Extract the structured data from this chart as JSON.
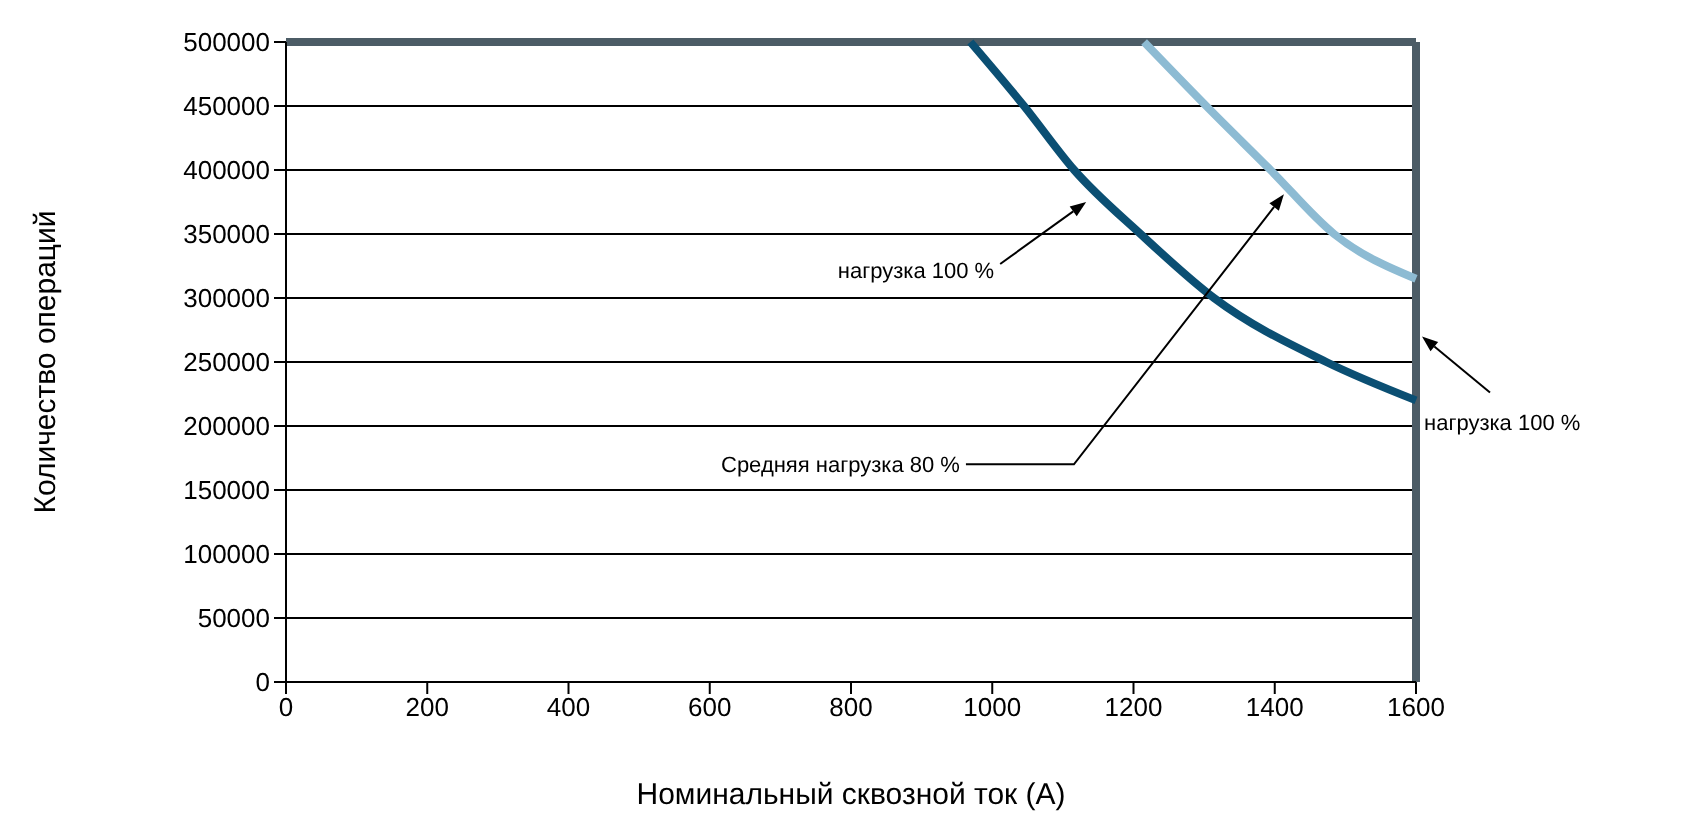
{
  "chart_data": {
    "type": "line",
    "xlabel": "Номинальный сквозной ток (А)",
    "ylabel": "Количество операций",
    "xlim": [
      0,
      1600
    ],
    "xticks": [
      0,
      200,
      400,
      600,
      800,
      1000,
      1200,
      1400,
      1600
    ],
    "ylim": [
      0,
      500000
    ],
    "yticks": [
      0,
      50000,
      100000,
      150000,
      200000,
      250000,
      300000,
      350000,
      400000,
      450000,
      500000
    ],
    "grid": "y",
    "ref_lines": [
      {
        "axis": "x",
        "value": 1600,
        "color": "#4c5c66",
        "label": "нагрузка 100 %"
      }
    ],
    "series": [
      {
        "color": "#4c5c66",
        "x": [
          0,
          1600
        ],
        "values": [
          500000,
          500000
        ]
      },
      {
        "color": "#8dbbd3",
        "x": [
          1215,
          1303,
          1394,
          1484,
          1600
        ],
        "values": [
          500000,
          450000,
          400000,
          350000,
          315000
        ]
      },
      {
        "color": "#0b4f73",
        "x": [
          969,
          1045,
          1116,
          1210,
          1314,
          1473,
          1600
        ],
        "values": [
          500000,
          450000,
          400000,
          350000,
          300000,
          250000,
          220000
        ]
      }
    ],
    "annotations": [
      {
        "text": "нагрузка 100 %",
        "x": 1133,
        "y": 375000
      },
      {
        "text": "Средняя нагрузка 80 %",
        "x": 1413,
        "y": 381000
      }
    ]
  }
}
